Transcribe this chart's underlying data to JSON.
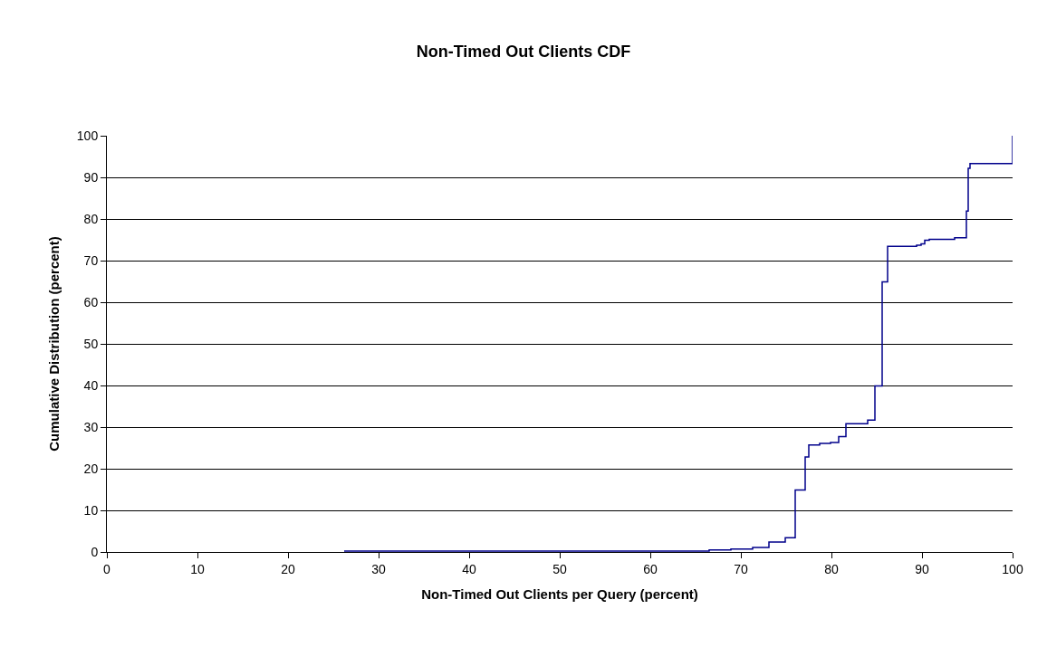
{
  "chart_data": {
    "type": "step",
    "title": "Non-Timed Out Clients CDF",
    "xlabel": "Non-Timed Out Clients per Query (percent)",
    "ylabel": "Cumulative Distribution (percent)",
    "x": [
      26.2,
      66.5,
      68.9,
      71.3,
      73.1,
      74.9,
      76.0,
      77.1,
      77.5,
      78.7,
      79.9,
      80.8,
      81.6,
      84.0,
      84.8,
      85.6,
      86.2,
      89.4,
      89.9,
      90.3,
      90.8,
      93.6,
      94.9,
      95.1,
      95.3,
      100
    ],
    "series": [
      {
        "color": "#00008b",
        "values": [
          0.2,
          0.5,
          0.7,
          1.1,
          2.4,
          3.4,
          14.9,
          22.8,
          25.7,
          26.1,
          26.3,
          27.7,
          30.8,
          31.7,
          39.9,
          64.9,
          73.4,
          73.7,
          74.0,
          74.9,
          75.1,
          75.5,
          81.9,
          92.2,
          93.3,
          100
        ]
      }
    ],
    "xlim": [
      0,
      100
    ],
    "xticks": [
      0,
      10,
      20,
      30,
      40,
      50,
      60,
      70,
      80,
      90,
      100
    ],
    "ylim": [
      0,
      100
    ],
    "yticks": [
      0,
      10,
      20,
      30,
      40,
      50,
      60,
      70,
      80,
      90,
      100
    ],
    "grid": "y",
    "marker": "none",
    "line_style": "solid"
  }
}
